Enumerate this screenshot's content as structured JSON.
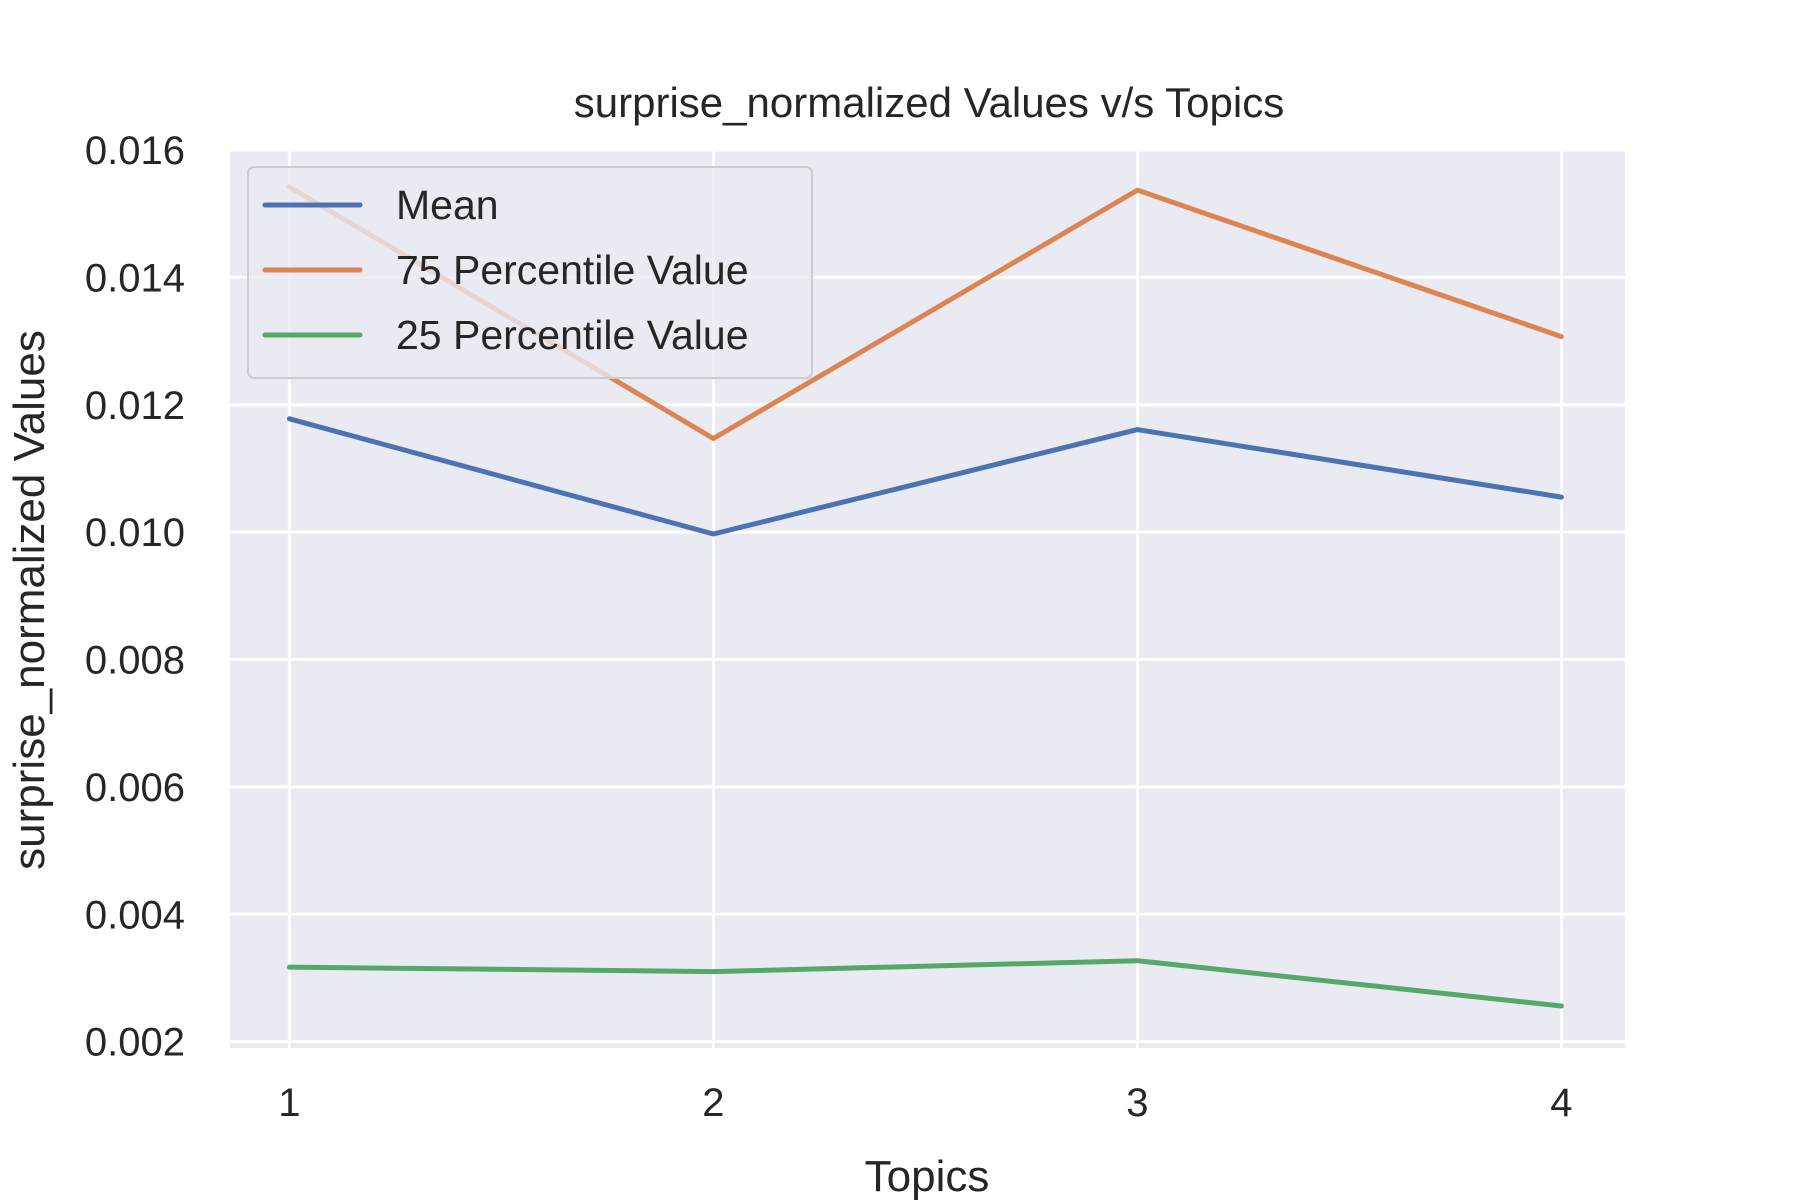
{
  "chart_data": {
    "type": "line",
    "title": "surprise_normalized Values v/s Topics",
    "xlabel": "Topics",
    "ylabel": "surprise_normalized Values",
    "x": [
      1,
      2,
      3,
      4
    ],
    "x_tick_labels": [
      "1",
      "2",
      "3",
      "4"
    ],
    "y_ticks": [
      0.002,
      0.004,
      0.006,
      0.008,
      0.01,
      0.012,
      0.014,
      0.016
    ],
    "y_tick_labels": [
      "0.002",
      "0.004",
      "0.006",
      "0.008",
      "0.010",
      "0.012",
      "0.014",
      "0.016"
    ],
    "xlim": [
      0.86,
      4.15
    ],
    "ylim": [
      0.0019,
      0.016
    ],
    "grid": true,
    "legend_position": "top-left",
    "series": [
      {
        "name": "Mean",
        "color": "#4c72b0",
        "values": [
          0.01178,
          0.00997,
          0.01161,
          0.01055
        ]
      },
      {
        "name": "75 Percentile Value",
        "color": "#dd8452",
        "values": [
          0.01542,
          0.01147,
          0.01537,
          0.01307
        ]
      },
      {
        "name": "25 Percentile Value",
        "color": "#55a868",
        "values": [
          0.00317,
          0.0031,
          0.00327,
          0.00256
        ]
      }
    ]
  }
}
